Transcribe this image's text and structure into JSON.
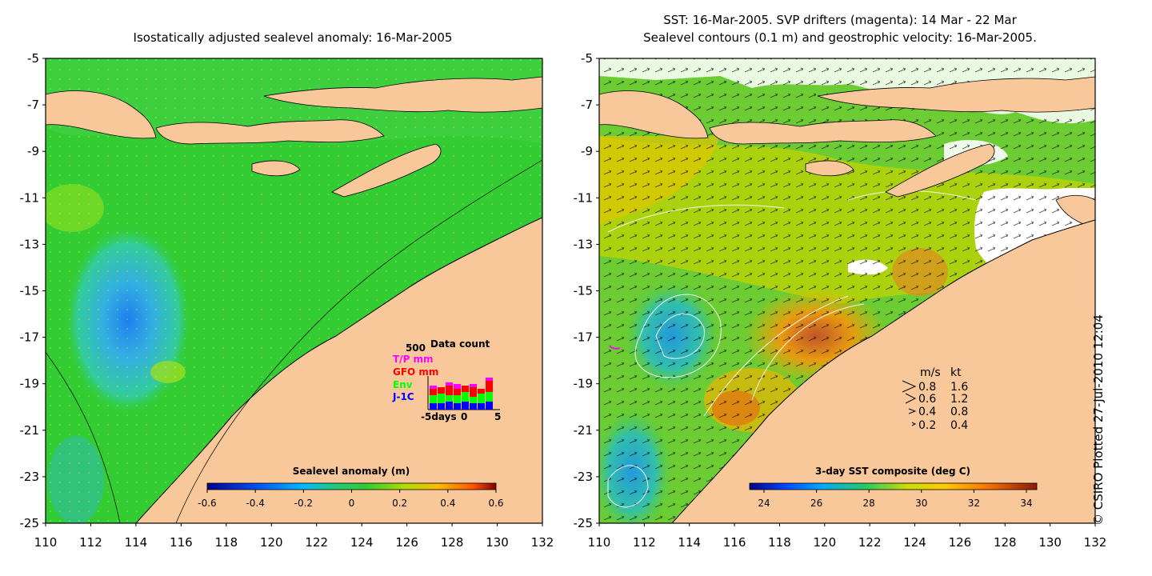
{
  "left_panel": {
    "title": "Isostatically adjusted sealevel anomaly: 16-Mar-2005",
    "colorbar": {
      "title": "Sealevel anomaly (m)",
      "labels": [
        "-0.6",
        "-0.4",
        "-0.2",
        "0",
        "0.2",
        "0.4",
        "0.6"
      ]
    },
    "inset": {
      "title": "Data count",
      "ymax_label": "500",
      "legend": [
        {
          "label": "T/P mm",
          "color": "#ff00ff"
        },
        {
          "label": "GFO mm",
          "color": "#ff0000"
        },
        {
          "label": "Env",
          "color": "#00ff00"
        },
        {
          "label": "J-1C",
          "color": "#0000ff"
        }
      ],
      "xlabels": [
        "-5days",
        "0",
        "5"
      ]
    }
  },
  "right_panel": {
    "title_line1": "SST: 16-Mar-2005. SVP drifters (magenta): 14 Mar - 22 Mar",
    "title_line2": "Sealevel contours (0.1 m) and geostrophic velocity: 16-Mar-2005.",
    "colorbar": {
      "title": "3-day SST composite (deg C)",
      "labels": [
        "24",
        "26",
        "28",
        "30",
        "32",
        "34"
      ]
    },
    "velocity_legend": {
      "header_ms": "m/s",
      "header_kt": "kt",
      "rows": [
        {
          "ms": "0.8",
          "kt": "1.6"
        },
        {
          "ms": "0.6",
          "kt": "1.2"
        },
        {
          "ms": "0.4",
          "kt": "0.8"
        },
        {
          "ms": "0.2",
          "kt": "0.4"
        }
      ]
    }
  },
  "axes": {
    "y_labels": [
      "-5",
      "-7",
      "-9",
      "-11",
      "-13",
      "-15",
      "-17",
      "-19",
      "-21",
      "-23",
      "-25"
    ],
    "x_labels": [
      "110",
      "112",
      "114",
      "116",
      "118",
      "120",
      "122",
      "124",
      "126",
      "128",
      "130",
      "132"
    ]
  },
  "credit": "© CSIRO Plotted 27-Jul-2010 12:04",
  "colors": {
    "land": "#f8c89a",
    "sea_green": "#33cc33",
    "sst_yellow": "#e8d000",
    "cloud": "#ffffff"
  }
}
